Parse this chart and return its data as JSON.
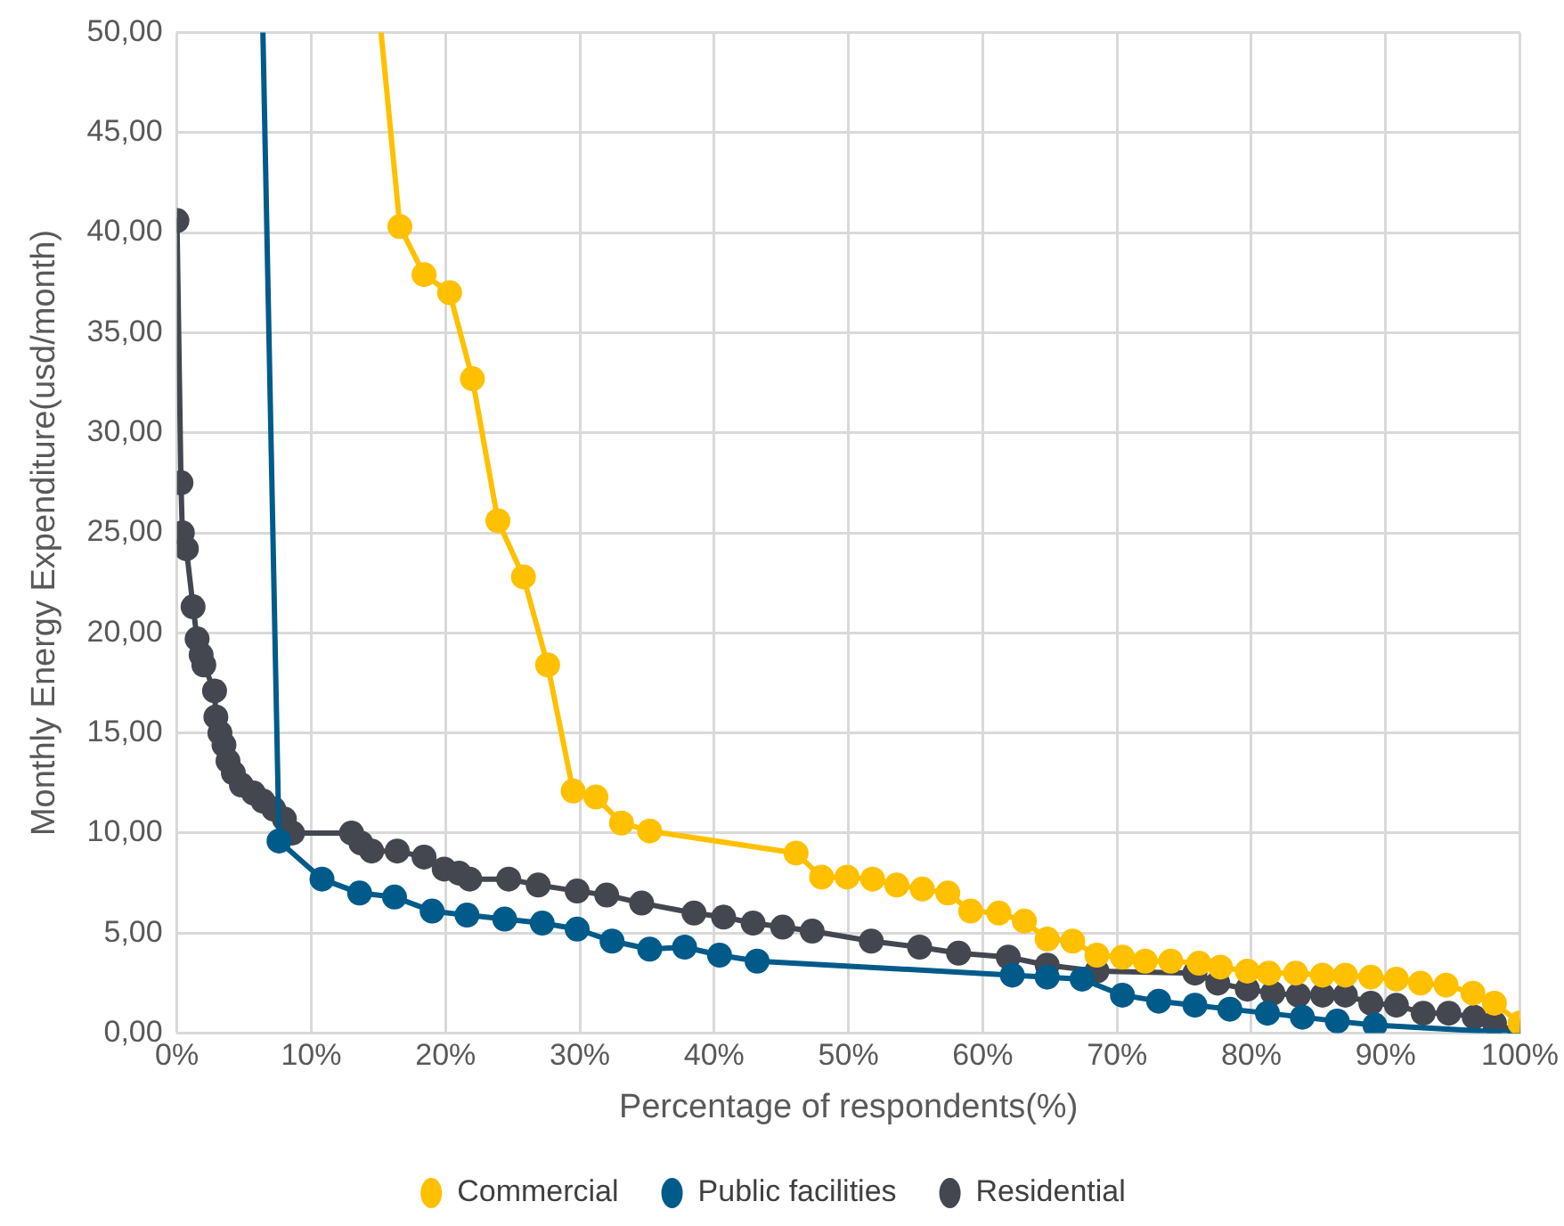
{
  "chart_data": {
    "type": "line",
    "xlabel": "Percentage of respondents(%)",
    "ylabel": "Monthly Energy Expenditure(usd/month)",
    "xlim": [
      0,
      100
    ],
    "xticks": [
      {
        "value": 0,
        "label": "0%"
      },
      {
        "value": 10,
        "label": "10%"
      },
      {
        "value": 20,
        "label": "20%"
      },
      {
        "value": 30,
        "label": "30%"
      },
      {
        "value": 40,
        "label": "40%"
      },
      {
        "value": 50,
        "label": "50%"
      },
      {
        "value": 60,
        "label": "60%"
      },
      {
        "value": 70,
        "label": "70%"
      },
      {
        "value": 80,
        "label": "80%"
      },
      {
        "value": 90,
        "label": "90%"
      },
      {
        "value": 100,
        "label": "100%"
      }
    ],
    "ylim": [
      0,
      50
    ],
    "yticks": [
      {
        "value": 0,
        "label": "0,00"
      },
      {
        "value": 5,
        "label": "5,00"
      },
      {
        "value": 10,
        "label": "10,00"
      },
      {
        "value": 15,
        "label": "15,00"
      },
      {
        "value": 20,
        "label": "20,00"
      },
      {
        "value": 25,
        "label": "25,00"
      },
      {
        "value": 30,
        "label": "30,00"
      },
      {
        "value": 35,
        "label": "35,00"
      },
      {
        "value": 40,
        "label": "40,00"
      },
      {
        "value": 45,
        "label": "45,00"
      },
      {
        "value": 50,
        "label": "50,00"
      }
    ],
    "grid": true,
    "legend": "bottom",
    "marker": "circle",
    "line_style": "solid",
    "series": [
      {
        "name": "Commercial",
        "color": "#ffc000",
        "x": [
          15.2,
          16.6,
          18.4,
          20.3,
          22.0,
          23.9,
          25.8,
          27.6,
          29.5,
          31.2,
          33.1,
          35.2,
          46.1,
          48.0,
          49.9,
          51.8,
          53.6,
          55.5,
          57.4,
          59.1,
          61.2,
          63.1,
          64.8,
          66.7,
          68.5,
          70.4,
          72.1,
          74.0,
          76.1,
          77.7,
          79.7,
          81.3,
          83.3,
          85.3,
          87.0,
          88.9,
          90.8,
          92.6,
          94.5,
          96.5,
          98.1,
          100
        ],
        "values": [
          50,
          40.3,
          37.9,
          37.0,
          32.7,
          25.6,
          22.8,
          18.4,
          12.1,
          11.8,
          10.5,
          10.1,
          9.0,
          7.8,
          7.8,
          7.7,
          7.4,
          7.2,
          7.0,
          6.1,
          6.0,
          5.6,
          4.7,
          4.6,
          3.9,
          3.8,
          3.6,
          3.6,
          3.5,
          3.3,
          3.1,
          3.0,
          3.0,
          2.9,
          2.9,
          2.8,
          2.7,
          2.5,
          2.4,
          2.0,
          1.5,
          0.5
        ]
      },
      {
        "name": "Public facilities",
        "color": "#005b8a",
        "x": [
          6.4,
          7.6,
          10.8,
          13.6,
          16.2,
          19.0,
          21.6,
          24.4,
          27.2,
          29.8,
          32.4,
          35.2,
          37.8,
          40.4,
          43.2,
          62.2,
          64.8,
          67.4,
          70.4,
          73.1,
          75.8,
          78.4,
          81.2,
          83.8,
          86.4,
          89.2,
          100
        ],
        "values": [
          50,
          9.6,
          7.7,
          7.0,
          6.8,
          6.1,
          5.9,
          5.7,
          5.5,
          5.2,
          4.6,
          4.2,
          4.3,
          3.9,
          3.6,
          2.9,
          2.8,
          2.7,
          1.9,
          1.6,
          1.4,
          1.2,
          1.0,
          0.8,
          0.6,
          0.4,
          0
        ]
      },
      {
        "name": "Residential",
        "color": "#44474f",
        "x": [
          0,
          0.3,
          0.4,
          0.7,
          1.2,
          1.5,
          1.8,
          2.0,
          2.8,
          2.9,
          3.2,
          3.5,
          3.8,
          4.2,
          4.8,
          5.7,
          6.4,
          7.2,
          8.0,
          8.6,
          13.0,
          13.7,
          14.5,
          16.4,
          18.4,
          19.9,
          21.0,
          21.8,
          24.7,
          26.9,
          29.8,
          32.0,
          34.6,
          38.5,
          40.7,
          42.9,
          45.1,
          47.3,
          51.7,
          55.3,
          58.2,
          61.9,
          64.8,
          68.5,
          75.8,
          77.5,
          79.7,
          81.6,
          83.5,
          85.3,
          87.0,
          88.9,
          90.8,
          92.8,
          94.7,
          96.6,
          98.1,
          100
        ],
        "values": [
          40.6,
          27.5,
          25.0,
          24.2,
          21.3,
          19.7,
          18.9,
          18.4,
          17.1,
          15.8,
          15.0,
          14.4,
          13.6,
          13.0,
          12.4,
          12.0,
          11.6,
          11.2,
          10.7,
          10.0,
          10.0,
          9.5,
          9.1,
          9.1,
          8.8,
          8.2,
          8.0,
          7.7,
          7.7,
          7.4,
          7.1,
          6.9,
          6.5,
          6.0,
          5.8,
          5.5,
          5.3,
          5.1,
          4.6,
          4.3,
          4.0,
          3.8,
          3.4,
          3.1,
          3.0,
          2.5,
          2.2,
          2.0,
          1.9,
          1.9,
          1.9,
          1.5,
          1.4,
          1.0,
          1.0,
          0.8,
          0.5,
          0.0
        ]
      }
    ]
  }
}
